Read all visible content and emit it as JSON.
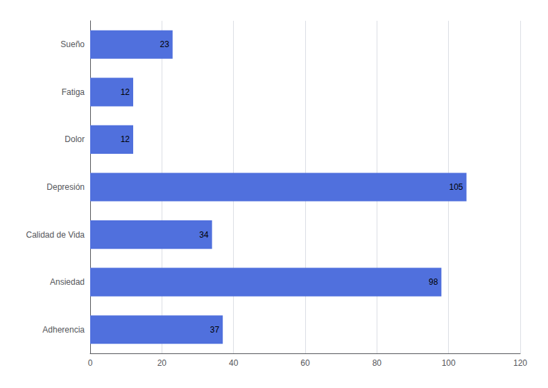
{
  "chart_data": {
    "type": "bar",
    "orientation": "horizontal",
    "categories": [
      "Adherencia",
      "Ansiedad",
      "Calidad de Vida",
      "Depresión",
      "Dolor",
      "Fatiga",
      "Sueño"
    ],
    "values": [
      37,
      98,
      34,
      105,
      12,
      12,
      23
    ],
    "xlim": [
      0,
      120
    ],
    "xticks": [
      0,
      20,
      40,
      60,
      80,
      100,
      120
    ],
    "grid": true,
    "data_labels": true
  }
}
